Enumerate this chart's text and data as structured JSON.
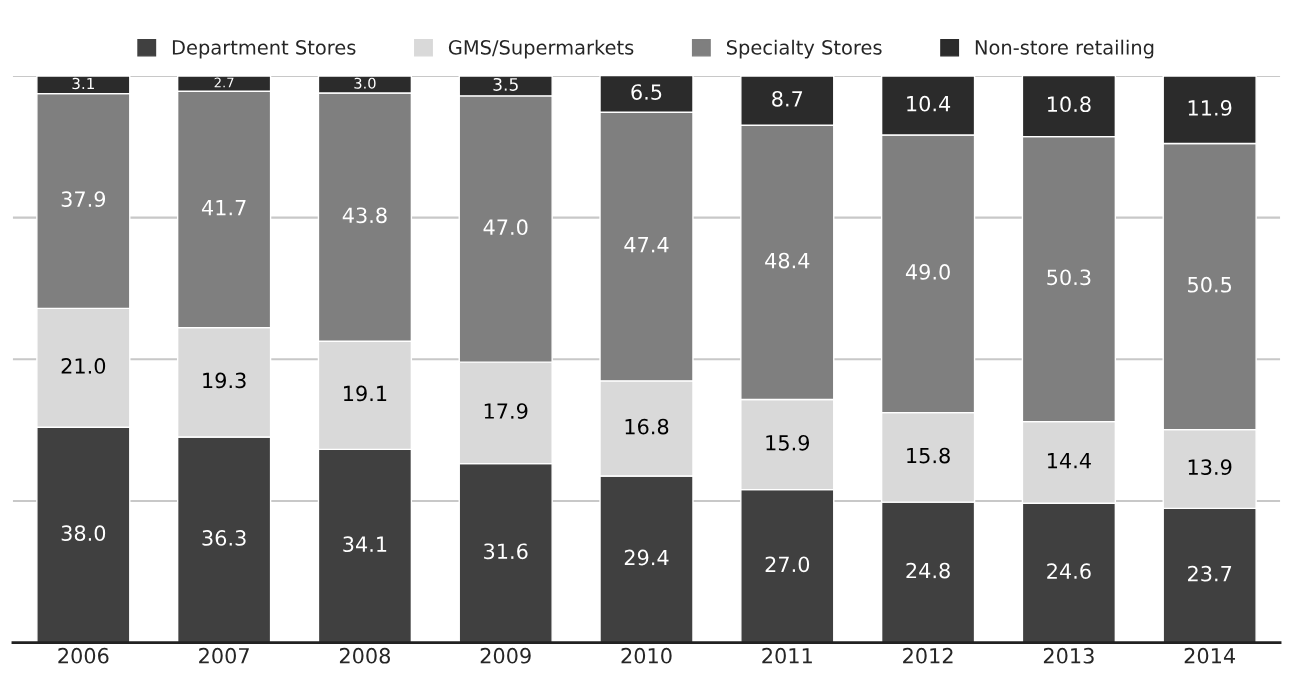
{
  "chart_data": {
    "type": "bar",
    "stacked": true,
    "categories": [
      "2006",
      "2007",
      "2008",
      "2009",
      "2010",
      "2011",
      "2012",
      "2013",
      "2014"
    ],
    "series": [
      {
        "name": "Department Stores",
        "color": "#404040",
        "values": [
          38.0,
          36.3,
          34.1,
          31.6,
          29.4,
          27.0,
          24.8,
          24.6,
          23.7
        ],
        "value_labels": [
          "38.0",
          "36.3",
          "34.1",
          "31.6",
          "29.4",
          "27.0",
          "24.8",
          "24.6",
          "23.7"
        ]
      },
      {
        "name": "GMS/Supermarkets",
        "color": "#d9d9d9",
        "values": [
          21.0,
          19.3,
          19.1,
          17.9,
          16.8,
          15.9,
          15.8,
          14.4,
          13.9
        ],
        "value_labels": [
          "21.0",
          "19.3",
          "19.1",
          "17.9",
          "16.8",
          "15.9",
          "15.8",
          "14.4",
          "13.9"
        ]
      },
      {
        "name": "Specialty Stores",
        "color": "#7f7f7f",
        "values": [
          37.9,
          41.7,
          43.8,
          47.0,
          47.4,
          48.4,
          49.0,
          50.3,
          50.5
        ],
        "value_labels": [
          "37.9",
          "41.7",
          "43.8",
          "47.0",
          "47.4",
          "48.4",
          "49.0",
          "50.3",
          "50.5"
        ]
      },
      {
        "name": "Non-store retailing",
        "color": "#2b2b2b",
        "values": [
          3.1,
          2.7,
          3.0,
          3.5,
          6.5,
          8.7,
          10.4,
          10.8,
          11.9
        ],
        "value_labels": [
          "3.1",
          "2.7",
          "3.0",
          "3.5",
          "6.5",
          "8.7",
          "10.4",
          "10.8",
          "11.9"
        ]
      }
    ],
    "ylim": [
      0,
      100
    ],
    "yticks": [
      {
        "value": 25,
        "label": null
      },
      {
        "value": 50,
        "label": null
      },
      {
        "value": 75,
        "label": null
      },
      {
        "value": 100,
        "label": null
      }
    ],
    "tick_labels": "x",
    "grid": "y",
    "legend": "top"
  }
}
